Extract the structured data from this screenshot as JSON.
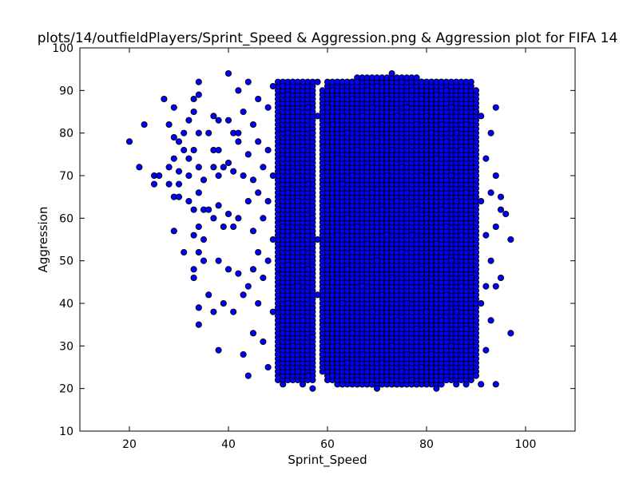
{
  "chart_data": {
    "type": "scatter",
    "title": "plots/14/outfieldPlayers/Sprint_Speed & Aggression.png & Aggression plot for FIFA 14",
    "xlabel": "Sprint_Speed",
    "ylabel": "Aggression",
    "xlim": [
      10,
      110
    ],
    "ylim": [
      10,
      100
    ],
    "xticks": [
      20,
      40,
      60,
      80,
      100
    ],
    "yticks": [
      10,
      20,
      30,
      40,
      50,
      60,
      70,
      80,
      90,
      100
    ],
    "grid": false,
    "colors": {
      "marker_fill": "#0000ff",
      "marker_edge": "#000000"
    },
    "points": [
      [
        20,
        78
      ],
      [
        22,
        72
      ],
      [
        23,
        82
      ],
      [
        25,
        68
      ],
      [
        25,
        70
      ],
      [
        26,
        70
      ],
      [
        27,
        88
      ],
      [
        28,
        72
      ],
      [
        28,
        68
      ],
      [
        28,
        82
      ],
      [
        29,
        86
      ],
      [
        29,
        79
      ],
      [
        29,
        74
      ],
      [
        29,
        65
      ],
      [
        29,
        57
      ],
      [
        30,
        71
      ],
      [
        30,
        78
      ],
      [
        30,
        68
      ],
      [
        30,
        65
      ],
      [
        31,
        80
      ],
      [
        31,
        76
      ],
      [
        31,
        52
      ],
      [
        32,
        74
      ],
      [
        32,
        70
      ],
      [
        32,
        64
      ],
      [
        32,
        83
      ],
      [
        33,
        88
      ],
      [
        33,
        85
      ],
      [
        33,
        76
      ],
      [
        33,
        62
      ],
      [
        33,
        56
      ],
      [
        33,
        48
      ],
      [
        33,
        46
      ],
      [
        34,
        92
      ],
      [
        34,
        89
      ],
      [
        34,
        80
      ],
      [
        34,
        72
      ],
      [
        34,
        66
      ],
      [
        34,
        58
      ],
      [
        34,
        52
      ],
      [
        34,
        39
      ],
      [
        34,
        35
      ],
      [
        35,
        69
      ],
      [
        35,
        62
      ],
      [
        35,
        55
      ],
      [
        35,
        50
      ],
      [
        36,
        80
      ],
      [
        36,
        62
      ],
      [
        36,
        42
      ],
      [
        37,
        76
      ],
      [
        37,
        84
      ],
      [
        37,
        72
      ],
      [
        37,
        60
      ],
      [
        37,
        38
      ],
      [
        38,
        83
      ],
      [
        38,
        76
      ],
      [
        38,
        70
      ],
      [
        38,
        63
      ],
      [
        38,
        50
      ],
      [
        38,
        29
      ],
      [
        39,
        72
      ],
      [
        39,
        58
      ],
      [
        39,
        40
      ],
      [
        40,
        94
      ],
      [
        40,
        83
      ],
      [
        40,
        73
      ],
      [
        40,
        61
      ],
      [
        40,
        48
      ],
      [
        41,
        80
      ],
      [
        41,
        71
      ],
      [
        41,
        58
      ],
      [
        41,
        38
      ],
      [
        42,
        90
      ],
      [
        42,
        78
      ],
      [
        42,
        60
      ],
      [
        42,
        47
      ],
      [
        42,
        80
      ],
      [
        43,
        85
      ],
      [
        43,
        70
      ],
      [
        43,
        28
      ],
      [
        43,
        42
      ],
      [
        44,
        92
      ],
      [
        44,
        75
      ],
      [
        44,
        64
      ],
      [
        44,
        44
      ],
      [
        44,
        23
      ],
      [
        45,
        82
      ],
      [
        45,
        69
      ],
      [
        45,
        57
      ],
      [
        45,
        48
      ],
      [
        45,
        33
      ],
      [
        46,
        88
      ],
      [
        46,
        78
      ],
      [
        46,
        66
      ],
      [
        46,
        52
      ],
      [
        46,
        40
      ],
      [
        47,
        72
      ],
      [
        47,
        60
      ],
      [
        47,
        46
      ],
      [
        47,
        31
      ],
      [
        48,
        86
      ],
      [
        48,
        76
      ],
      [
        48,
        64
      ],
      [
        48,
        50
      ],
      [
        48,
        25
      ],
      [
        49,
        91
      ],
      [
        49,
        70
      ],
      [
        49,
        55
      ],
      [
        49,
        38
      ],
      [
        50,
        84
      ],
      [
        50,
        62
      ],
      [
        50,
        46
      ],
      [
        50,
        28
      ],
      [
        51,
        91
      ],
      [
        51,
        74
      ],
      [
        51,
        58
      ],
      [
        51,
        33
      ],
      [
        51,
        21
      ],
      [
        52,
        89
      ],
      [
        52,
        80
      ],
      [
        52,
        66
      ],
      [
        52,
        49
      ],
      [
        52,
        40
      ],
      [
        53,
        92
      ],
      [
        53,
        71
      ],
      [
        53,
        56
      ],
      [
        53,
        30
      ],
      [
        54,
        85
      ],
      [
        54,
        64
      ],
      [
        54,
        44
      ],
      [
        54,
        24
      ],
      [
        55,
        92
      ],
      [
        55,
        76
      ],
      [
        55,
        52
      ],
      [
        55,
        36
      ],
      [
        55,
        21
      ],
      [
        56,
        86
      ],
      [
        56,
        68
      ],
      [
        56,
        48
      ],
      [
        56,
        23
      ],
      [
        57,
        80
      ],
      [
        57,
        60
      ],
      [
        57,
        32
      ],
      [
        57,
        20
      ],
      [
        58,
        84
      ],
      [
        58,
        92
      ],
      [
        58,
        55
      ],
      [
        58,
        42
      ],
      [
        59,
        78
      ],
      [
        59,
        64
      ],
      [
        59,
        28
      ],
      [
        60,
        86
      ],
      [
        60,
        72
      ],
      [
        60,
        50
      ],
      [
        60,
        36
      ],
      [
        61,
        82
      ],
      [
        61,
        62
      ],
      [
        61,
        45
      ],
      [
        61,
        23
      ],
      [
        62,
        88
      ],
      [
        62,
        74
      ],
      [
        62,
        56
      ],
      [
        62,
        30
      ],
      [
        63,
        84
      ],
      [
        63,
        68
      ],
      [
        63,
        40
      ],
      [
        63,
        21
      ],
      [
        64,
        80
      ],
      [
        64,
        60
      ],
      [
        64,
        48
      ],
      [
        64,
        26
      ],
      [
        65,
        88
      ],
      [
        65,
        70
      ],
      [
        65,
        52
      ],
      [
        65,
        33
      ],
      [
        66,
        92
      ],
      [
        66,
        76
      ],
      [
        66,
        58
      ],
      [
        66,
        22
      ],
      [
        67,
        84
      ],
      [
        67,
        64
      ],
      [
        67,
        44
      ],
      [
        67,
        28
      ],
      [
        68,
        90
      ],
      [
        68,
        72
      ],
      [
        68,
        54
      ],
      [
        68,
        24
      ],
      [
        69,
        86
      ],
      [
        69,
        66
      ],
      [
        69,
        38
      ],
      [
        69,
        21
      ],
      [
        70,
        91
      ],
      [
        70,
        78
      ],
      [
        70,
        50
      ],
      [
        70,
        20
      ],
      [
        71,
        82
      ],
      [
        71,
        62
      ],
      [
        71,
        42
      ],
      [
        71,
        26
      ],
      [
        72,
        88
      ],
      [
        72,
        70
      ],
      [
        72,
        56
      ],
      [
        72,
        22
      ],
      [
        73,
        94
      ],
      [
        73,
        76
      ],
      [
        73,
        46
      ],
      [
        73,
        30
      ],
      [
        74,
        84
      ],
      [
        74,
        64
      ],
      [
        74,
        36
      ],
      [
        74,
        21
      ],
      [
        75,
        92
      ],
      [
        75,
        72
      ],
      [
        75,
        52
      ],
      [
        75,
        24
      ],
      [
        76,
        86
      ],
      [
        76,
        66
      ],
      [
        76,
        40
      ],
      [
        76,
        28
      ],
      [
        77,
        90
      ],
      [
        77,
        78
      ],
      [
        77,
        56
      ],
      [
        77,
        22
      ],
      [
        78,
        82
      ],
      [
        78,
        62
      ],
      [
        78,
        34
      ],
      [
        78,
        21
      ],
      [
        79,
        88
      ],
      [
        79,
        70
      ],
      [
        79,
        48
      ],
      [
        79,
        25
      ],
      [
        80,
        84
      ],
      [
        80,
        60
      ],
      [
        80,
        38
      ],
      [
        80,
        21
      ],
      [
        81,
        80
      ],
      [
        81,
        66
      ],
      [
        81,
        44
      ],
      [
        81,
        28
      ],
      [
        82,
        89
      ],
      [
        82,
        74
      ],
      [
        82,
        54
      ],
      [
        82,
        20
      ],
      [
        83,
        82
      ],
      [
        83,
        62
      ],
      [
        83,
        36
      ],
      [
        83,
        24
      ],
      [
        84,
        78
      ],
      [
        84,
        58
      ],
      [
        84,
        42
      ],
      [
        84,
        22
      ],
      [
        85,
        86
      ],
      [
        85,
        70
      ],
      [
        85,
        50
      ],
      [
        85,
        30
      ],
      [
        86,
        80
      ],
      [
        86,
        64
      ],
      [
        86,
        38
      ],
      [
        86,
        21
      ],
      [
        87,
        76
      ],
      [
        87,
        56
      ],
      [
        87,
        44
      ],
      [
        88,
        82
      ],
      [
        88,
        66
      ],
      [
        88,
        34
      ],
      [
        88,
        21
      ],
      [
        89,
        78
      ],
      [
        89,
        60
      ],
      [
        89,
        46
      ],
      [
        89,
        29
      ],
      [
        90,
        85
      ],
      [
        90,
        70
      ],
      [
        90,
        52
      ],
      [
        90,
        23
      ],
      [
        91,
        84
      ],
      [
        91,
        64
      ],
      [
        91,
        40
      ],
      [
        91,
        21
      ],
      [
        92,
        74
      ],
      [
        92,
        56
      ],
      [
        92,
        44
      ],
      [
        92,
        29
      ],
      [
        93,
        80
      ],
      [
        93,
        66
      ],
      [
        93,
        50
      ],
      [
        93,
        36
      ],
      [
        94,
        86
      ],
      [
        94,
        70
      ],
      [
        94,
        58
      ],
      [
        94,
        44
      ],
      [
        94,
        21
      ],
      [
        95,
        65
      ],
      [
        95,
        62
      ],
      [
        95,
        46
      ],
      [
        96,
        61
      ],
      [
        97,
        55
      ],
      [
        97,
        33
      ]
    ],
    "dense_regions": [
      {
        "x": [
          50,
          57
        ],
        "y": [
          22,
          92
        ]
      },
      {
        "x": [
          59,
          90
        ],
        "y": [
          22,
          92
        ]
      },
      {
        "x": [
          61,
          84
        ],
        "y": [
          21,
          92
        ]
      },
      {
        "x": [
          65,
          79
        ],
        "y": [
          21,
          93
        ]
      }
    ]
  }
}
